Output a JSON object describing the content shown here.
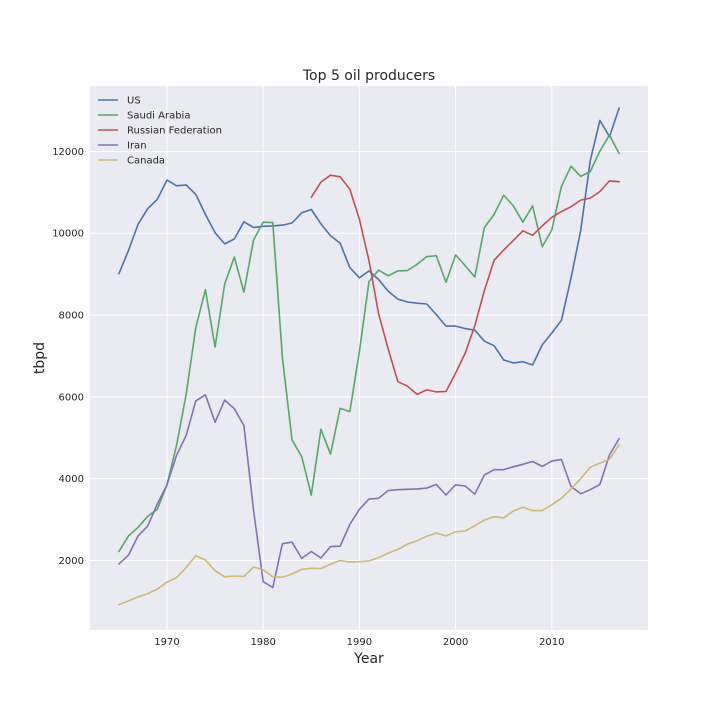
{
  "chart_data": {
    "type": "line",
    "title": "Top 5 oil producers",
    "xlabel": "Year",
    "ylabel": "tbpd",
    "xlim": [
      1962,
      2020
    ],
    "ylim": [
      300,
      13600
    ],
    "xticks": [
      1970,
      1980,
      1990,
      2000,
      2010
    ],
    "yticks": [
      2000,
      4000,
      6000,
      8000,
      10000,
      12000
    ],
    "grid": true,
    "legend_position": "top-left",
    "series": [
      {
        "name": "US",
        "color": "#4c72b0",
        "x": [
          1965,
          1966,
          1967,
          1968,
          1969,
          1970,
          1971,
          1972,
          1973,
          1974,
          1975,
          1976,
          1977,
          1978,
          1979,
          1980,
          1981,
          1982,
          1983,
          1984,
          1985,
          1986,
          1987,
          1988,
          1989,
          1990,
          1991,
          1992,
          1993,
          1994,
          1995,
          1996,
          1997,
          1998,
          1999,
          2000,
          2001,
          2002,
          2003,
          2004,
          2005,
          2006,
          2007,
          2008,
          2009,
          2010,
          2011,
          2012,
          2013,
          2014,
          2015,
          2016,
          2017
        ],
        "y": [
          9010,
          9580,
          10220,
          10600,
          10830,
          11300,
          11160,
          11180,
          10950,
          10460,
          10010,
          9740,
          9860,
          10280,
          10140,
          10170,
          10180,
          10200,
          10250,
          10500,
          10580,
          10230,
          9940,
          9760,
          9160,
          8910,
          9080,
          8870,
          8580,
          8390,
          8320,
          8290,
          8270,
          8010,
          7730,
          7730,
          7670,
          7630,
          7360,
          7250,
          6900,
          6830,
          6860,
          6780,
          7270,
          7560,
          7870,
          8900,
          10070,
          11780,
          12760,
          12360,
          13060
        ]
      },
      {
        "name": "Saudi Arabia",
        "color": "#55a868",
        "x": [
          1965,
          1966,
          1967,
          1968,
          1969,
          1970,
          1971,
          1972,
          1973,
          1974,
          1975,
          1976,
          1977,
          1978,
          1979,
          1980,
          1981,
          1982,
          1983,
          1984,
          1985,
          1986,
          1987,
          1988,
          1989,
          1990,
          1991,
          1992,
          1993,
          1994,
          1995,
          1996,
          1997,
          1998,
          1999,
          2000,
          2001,
          2002,
          2003,
          2004,
          2005,
          2006,
          2007,
          2008,
          2009,
          2010,
          2011,
          2012,
          2013,
          2014,
          2015,
          2016,
          2017
        ],
        "y": [
          2220,
          2600,
          2810,
          3080,
          3250,
          3850,
          4820,
          6070,
          7690,
          8620,
          7220,
          8760,
          9420,
          8560,
          9840,
          10270,
          10260,
          6960,
          4950,
          4540,
          3600,
          5210,
          4600,
          5720,
          5640,
          7110,
          8820,
          9100,
          8960,
          9080,
          9090,
          9240,
          9430,
          9450,
          8800,
          9470,
          9210,
          8930,
          10140,
          10460,
          10930,
          10670,
          10270,
          10670,
          9670,
          10080,
          11140,
          11640,
          11390,
          11510,
          12010,
          12400,
          11950
        ]
      },
      {
        "name": "Russian Federation",
        "color": "#c44e52",
        "x": [
          1985,
          1986,
          1987,
          1988,
          1989,
          1990,
          1991,
          1992,
          1993,
          1994,
          1995,
          1996,
          1997,
          1998,
          1999,
          2000,
          2001,
          2002,
          2003,
          2004,
          2005,
          2006,
          2007,
          2008,
          2009,
          2010,
          2011,
          2012,
          2013,
          2014,
          2015,
          2016,
          2017
        ],
        "y": [
          10880,
          11250,
          11420,
          11380,
          11080,
          10340,
          9330,
          8030,
          7170,
          6370,
          6260,
          6060,
          6170,
          6120,
          6130,
          6580,
          7070,
          7740,
          8600,
          9340,
          9590,
          9820,
          10060,
          9950,
          10180,
          10390,
          10530,
          10650,
          10810,
          10860,
          11020,
          11280,
          11260
        ]
      },
      {
        "name": "Iran",
        "color": "#8172b2",
        "x": [
          1965,
          1966,
          1967,
          1968,
          1969,
          1970,
          1971,
          1972,
          1973,
          1974,
          1975,
          1976,
          1977,
          1978,
          1979,
          1980,
          1981,
          1982,
          1983,
          1984,
          1985,
          1986,
          1987,
          1988,
          1989,
          1990,
          1991,
          1992,
          1993,
          1994,
          1995,
          1996,
          1997,
          1998,
          1999,
          2000,
          2001,
          2002,
          2003,
          2004,
          2005,
          2006,
          2007,
          2008,
          2009,
          2010,
          2011,
          2012,
          2013,
          2014,
          2015,
          2016,
          2017
        ],
        "y": [
          1910,
          2130,
          2600,
          2840,
          3380,
          3850,
          4570,
          5060,
          5900,
          6050,
          5380,
          5920,
          5710,
          5300,
          3220,
          1480,
          1340,
          2410,
          2450,
          2050,
          2220,
          2060,
          2340,
          2350,
          2880,
          3250,
          3500,
          3520,
          3710,
          3730,
          3740,
          3750,
          3770,
          3860,
          3600,
          3850,
          3820,
          3620,
          4090,
          4220,
          4220,
          4290,
          4350,
          4420,
          4300,
          4430,
          4470,
          3810,
          3630,
          3730,
          3860,
          4580,
          4980
        ]
      },
      {
        "name": "Canada",
        "color": "#ccb974",
        "x": [
          1965,
          1966,
          1967,
          1968,
          1969,
          1970,
          1971,
          1972,
          1973,
          1974,
          1975,
          1976,
          1977,
          1978,
          1979,
          1980,
          1981,
          1982,
          1983,
          1984,
          1985,
          1986,
          1987,
          1988,
          1989,
          1990,
          1991,
          1992,
          1993,
          1994,
          1995,
          1996,
          1997,
          1998,
          1999,
          2000,
          2001,
          2002,
          2003,
          2004,
          2005,
          2006,
          2007,
          2008,
          2009,
          2010,
          2011,
          2012,
          2013,
          2014,
          2015,
          2016,
          2017
        ],
        "y": [
          920,
          1010,
          1110,
          1190,
          1300,
          1470,
          1580,
          1830,
          2120,
          2010,
          1750,
          1600,
          1620,
          1610,
          1840,
          1770,
          1600,
          1590,
          1670,
          1780,
          1810,
          1800,
          1910,
          2000,
          1960,
          1970,
          1990,
          2070,
          2180,
          2270,
          2400,
          2480,
          2590,
          2670,
          2600,
          2700,
          2720,
          2850,
          2990,
          3070,
          3040,
          3210,
          3300,
          3220,
          3220,
          3360,
          3520,
          3750,
          4000,
          4280,
          4380,
          4470,
          4830
        ]
      }
    ]
  }
}
